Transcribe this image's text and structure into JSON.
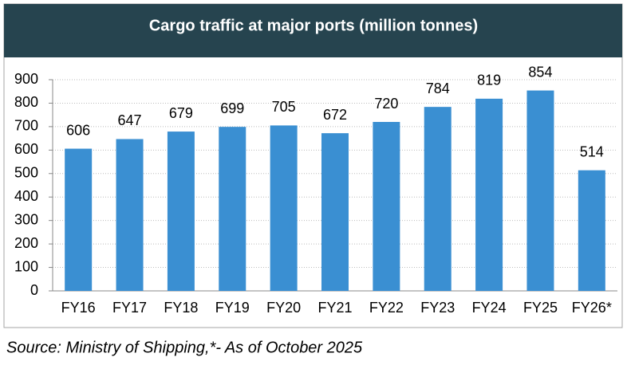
{
  "chart_data": {
    "type": "bar",
    "title": "Cargo traffic at major ports (million tonnes)",
    "categories": [
      "FY16",
      "FY17",
      "FY18",
      "FY19",
      "FY20",
      "FY21",
      "FY22",
      "FY23",
      "FY24",
      "FY25",
      "FY26*"
    ],
    "values": [
      606,
      647,
      679,
      699,
      705,
      672,
      720,
      784,
      819,
      854,
      514
    ],
    "color": "#3a8fd2",
    "ylim": [
      0,
      900
    ],
    "yticks": [
      0,
      100,
      200,
      300,
      400,
      500,
      600,
      700,
      800,
      900
    ],
    "grid": true,
    "source": "Source: Ministry of Shipping,*- As of October 2025"
  }
}
